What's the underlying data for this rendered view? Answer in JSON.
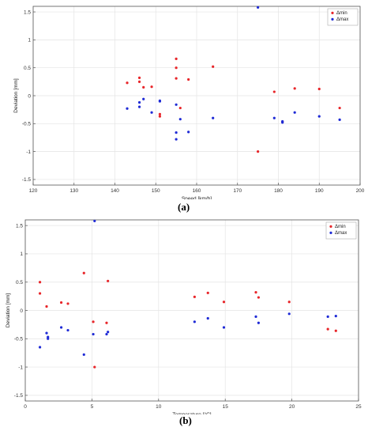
{
  "colors": {
    "min": "#e8262a",
    "max": "#1f2bd6",
    "grid": "#e4e4e4",
    "axis": "#555555"
  },
  "legend": {
    "min_label": "Δmin",
    "max_label": "Δmax"
  },
  "captions": {
    "a": "(a)",
    "b": "(b)"
  },
  "chart_data": [
    {
      "type": "scatter",
      "xlabel": "Speed [km/h]",
      "ylabel": "Deviation [mm]",
      "xlim": [
        120,
        200
      ],
      "ylim": [
        -1.6,
        1.6
      ],
      "xticks": [
        120,
        130,
        140,
        150,
        160,
        170,
        180,
        190,
        200
      ],
      "yticks": [
        -1.5,
        -1,
        -0.5,
        0,
        0.5,
        1,
        1.5
      ],
      "grid": true,
      "legend_position": "top-right",
      "series": [
        {
          "name": "Δmin",
          "points": [
            [
              143,
              0.23
            ],
            [
              146,
              0.32
            ],
            [
              146,
              0.25
            ],
            [
              147,
              0.15
            ],
            [
              149,
              0.16
            ],
            [
              151,
              -0.33
            ],
            [
              151,
              -0.37
            ],
            [
              155,
              0.66
            ],
            [
              155,
              0.5
            ],
            [
              155,
              0.31
            ],
            [
              156,
              -0.22
            ],
            [
              158,
              0.29
            ],
            [
              164,
              0.52
            ],
            [
              175,
              -1.0
            ],
            [
              179,
              0.07
            ],
            [
              181,
              -0.47
            ],
            [
              184,
              0.13
            ],
            [
              190,
              0.12
            ],
            [
              195,
              -0.22
            ]
          ]
        },
        {
          "name": "Δmax",
          "points": [
            [
              143,
              -0.23
            ],
            [
              146,
              -0.2
            ],
            [
              146,
              -0.12
            ],
            [
              147,
              -0.06
            ],
            [
              149,
              -0.3
            ],
            [
              151,
              -0.1
            ],
            [
              151,
              -0.09
            ],
            [
              155,
              -0.16
            ],
            [
              155,
              -0.66
            ],
            [
              155,
              -0.78
            ],
            [
              156,
              -0.42
            ],
            [
              158,
              -0.65
            ],
            [
              164,
              -0.4
            ],
            [
              175,
              1.58
            ],
            [
              179,
              -0.4
            ],
            [
              181,
              -0.46
            ],
            [
              181,
              -0.48
            ],
            [
              184,
              -0.3
            ],
            [
              190,
              -0.37
            ],
            [
              195,
              -0.43
            ]
          ]
        }
      ]
    },
    {
      "type": "scatter",
      "xlabel": "Temperature [°C]",
      "ylabel": "Deviation [mm]",
      "xlim": [
        0,
        25
      ],
      "ylim": [
        -1.6,
        1.6
      ],
      "xticks": [
        0,
        5,
        10,
        15,
        20,
        25
      ],
      "yticks": [
        -1.5,
        -1,
        -0.5,
        0,
        0.5,
        1,
        1.5
      ],
      "grid": true,
      "legend_position": "top-right",
      "series": [
        {
          "name": "Δmin",
          "points": [
            [
              1.1,
              0.5
            ],
            [
              1.1,
              0.3
            ],
            [
              1.6,
              0.07
            ],
            [
              2.7,
              0.14
            ],
            [
              3.2,
              0.12
            ],
            [
              4.4,
              0.66
            ],
            [
              5.1,
              -0.2
            ],
            [
              5.2,
              -1.0
            ],
            [
              6.1,
              -0.22
            ],
            [
              6.2,
              0.52
            ],
            [
              12.7,
              0.24
            ],
            [
              13.7,
              0.31
            ],
            [
              14.9,
              0.15
            ],
            [
              17.3,
              0.32
            ],
            [
              17.5,
              0.23
            ],
            [
              19.8,
              0.15
            ],
            [
              22.7,
              -0.33
            ],
            [
              23.3,
              -0.36
            ]
          ]
        },
        {
          "name": "Δmax",
          "points": [
            [
              1.1,
              -0.65
            ],
            [
              1.6,
              -0.4
            ],
            [
              1.7,
              -0.47
            ],
            [
              1.7,
              -0.5
            ],
            [
              2.7,
              -0.3
            ],
            [
              3.2,
              -0.35
            ],
            [
              4.4,
              -0.78
            ],
            [
              5.1,
              -0.42
            ],
            [
              5.2,
              1.58
            ],
            [
              6.1,
              -0.42
            ],
            [
              6.2,
              -0.38
            ],
            [
              12.7,
              -0.2
            ],
            [
              13.7,
              -0.14
            ],
            [
              14.9,
              -0.3
            ],
            [
              17.3,
              -0.11
            ],
            [
              17.5,
              -0.22
            ],
            [
              19.8,
              -0.06
            ],
            [
              22.7,
              -0.11
            ],
            [
              23.3,
              -0.1
            ]
          ]
        }
      ]
    }
  ]
}
